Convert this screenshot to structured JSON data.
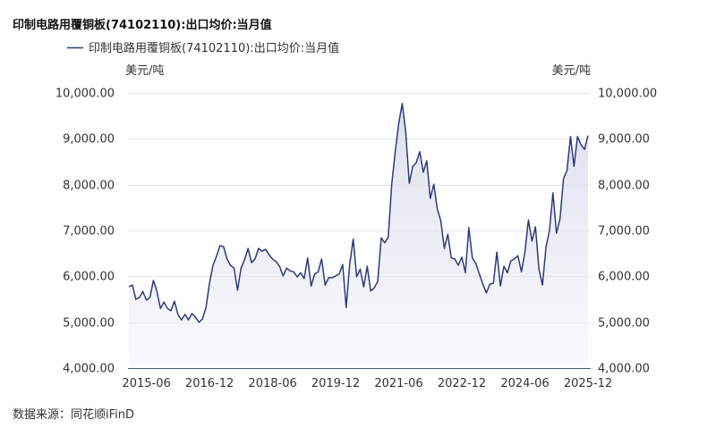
{
  "source": "数据来源：同花顺iFinD",
  "colors": {
    "line": "#2e3a78",
    "area_top": "#d3d5e7",
    "area_bottom": "#f5f6fb",
    "grid": "#e4e4e4",
    "axis": "#4b5478",
    "text": "#333333"
  },
  "chart_data": {
    "type": "area",
    "title": "印制电路用覆铜板(74102110):出口均价:当月值",
    "legend_position": "top-left",
    "grid": true,
    "y_unit_left": "美元/吨",
    "y_unit_right": "美元/吨",
    "ylim": [
      4000,
      10000
    ],
    "yticks": [
      4000,
      5000,
      6000,
      7000,
      8000,
      9000,
      10000
    ],
    "ytick_labels": [
      "4,000.00",
      "5,000.00",
      "6,000.00",
      "7,000.00",
      "8,000.00",
      "9,000.00",
      "10,000.00"
    ],
    "xticks": [
      "2015-06",
      "2016-12",
      "2018-06",
      "2019-12",
      "2021-06",
      "2022-12",
      "2024-06",
      "2025-12"
    ],
    "x": [
      "2015-01",
      "2015-02",
      "2015-03",
      "2015-04",
      "2015-05",
      "2015-06",
      "2015-07",
      "2015-08",
      "2015-09",
      "2015-10",
      "2015-11",
      "2015-12",
      "2016-01",
      "2016-02",
      "2016-03",
      "2016-04",
      "2016-05",
      "2016-06",
      "2016-07",
      "2016-08",
      "2016-09",
      "2016-10",
      "2016-11",
      "2016-12",
      "2017-01",
      "2017-02",
      "2017-03",
      "2017-04",
      "2017-05",
      "2017-06",
      "2017-07",
      "2017-08",
      "2017-09",
      "2017-10",
      "2017-11",
      "2017-12",
      "2018-01",
      "2018-02",
      "2018-03",
      "2018-04",
      "2018-05",
      "2018-06",
      "2018-07",
      "2018-08",
      "2018-09",
      "2018-10",
      "2018-11",
      "2018-12",
      "2019-01",
      "2019-02",
      "2019-03",
      "2019-04",
      "2019-05",
      "2019-06",
      "2019-07",
      "2019-08",
      "2019-09",
      "2019-10",
      "2019-11",
      "2019-12",
      "2020-01",
      "2020-02",
      "2020-03",
      "2020-04",
      "2020-05",
      "2020-06",
      "2020-07",
      "2020-08",
      "2020-09",
      "2020-10",
      "2020-11",
      "2020-12",
      "2021-01",
      "2021-02",
      "2021-03",
      "2021-04",
      "2021-05",
      "2021-06",
      "2021-07",
      "2021-08",
      "2021-09",
      "2021-10",
      "2021-11",
      "2021-12",
      "2022-01",
      "2022-02",
      "2022-03",
      "2022-04",
      "2022-05",
      "2022-06",
      "2022-07",
      "2022-08",
      "2022-09",
      "2022-10",
      "2022-11",
      "2022-12",
      "2023-01",
      "2023-02",
      "2023-03",
      "2023-04",
      "2023-05",
      "2023-06",
      "2023-07",
      "2023-08",
      "2023-09",
      "2023-10",
      "2023-11",
      "2023-12",
      "2024-01",
      "2024-02",
      "2024-03",
      "2024-04",
      "2024-05",
      "2024-06",
      "2024-07",
      "2024-08",
      "2024-09",
      "2024-10",
      "2024-11",
      "2024-12",
      "2025-01",
      "2025-02",
      "2025-03",
      "2025-04",
      "2025-05",
      "2025-06",
      "2025-07",
      "2025-08",
      "2025-09",
      "2025-10",
      "2025-11",
      "2025-12"
    ],
    "series": [
      {
        "name": "印制电路用覆铜板(74102110):出口均价:当月值",
        "values": [
          5770,
          5810,
          5500,
          5540,
          5670,
          5480,
          5540,
          5910,
          5670,
          5300,
          5440,
          5300,
          5250,
          5460,
          5170,
          5050,
          5170,
          5050,
          5190,
          5110,
          5000,
          5070,
          5320,
          5850,
          6240,
          6440,
          6670,
          6650,
          6380,
          6240,
          6180,
          5700,
          6180,
          6360,
          6610,
          6300,
          6380,
          6610,
          6550,
          6590,
          6470,
          6380,
          6320,
          6220,
          6010,
          6180,
          6120,
          6100,
          5990,
          6080,
          5950,
          6400,
          5790,
          6050,
          6100,
          6380,
          5810,
          5970,
          5970,
          6010,
          6050,
          6260,
          5320,
          6260,
          6810,
          5990,
          6160,
          5770,
          6220,
          5680,
          5750,
          5890,
          6840,
          6730,
          6860,
          8010,
          8720,
          9340,
          9770,
          9140,
          8030,
          8400,
          8480,
          8720,
          8270,
          8520,
          7700,
          8010,
          7470,
          7210,
          6610,
          6920,
          6400,
          6380,
          6240,
          6420,
          6080,
          7060,
          6400,
          6280,
          6050,
          5830,
          5640,
          5830,
          5850,
          6530,
          5790,
          6220,
          6080,
          6340,
          6380,
          6450,
          6100,
          6530,
          7230,
          6770,
          7080,
          6160,
          5810,
          6630,
          7000,
          7820,
          6940,
          7250,
          8130,
          8310,
          9050,
          8400,
          9050,
          8870,
          8770,
          9070
        ]
      }
    ]
  }
}
